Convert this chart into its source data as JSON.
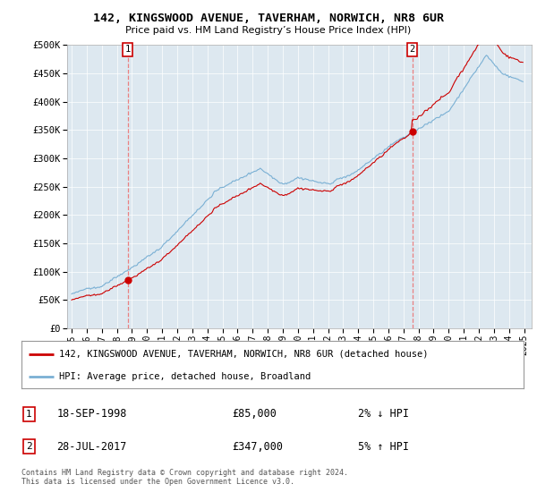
{
  "title": "142, KINGSWOOD AVENUE, TAVERHAM, NORWICH, NR8 6UR",
  "subtitle": "Price paid vs. HM Land Registry’s House Price Index (HPI)",
  "legend_line1": "142, KINGSWOOD AVENUE, TAVERHAM, NORWICH, NR8 6UR (detached house)",
  "legend_line2": "HPI: Average price, detached house, Broadland",
  "transaction1_date": "18-SEP-1998",
  "transaction1_price": "£85,000",
  "transaction1_hpi": "2% ↓ HPI",
  "transaction2_date": "28-JUL-2017",
  "transaction2_price": "£347,000",
  "transaction2_hpi": "5% ↑ HPI",
  "footer": "Contains HM Land Registry data © Crown copyright and database right 2024.\nThis data is licensed under the Open Government Licence v3.0.",
  "hpi_color": "#7ab0d4",
  "price_color": "#cc0000",
  "marker_color": "#cc0000",
  "plot_bg_color": "#dde8f0",
  "background_color": "#ffffff",
  "grid_color": "#ffffff",
  "ylim": [
    0,
    500000
  ],
  "yticks": [
    0,
    50000,
    100000,
    150000,
    200000,
    250000,
    300000,
    350000,
    400000,
    450000,
    500000
  ],
  "t1_year": 1998.72,
  "t1_val": 85000,
  "t2_year": 2017.58,
  "t2_val": 347000
}
